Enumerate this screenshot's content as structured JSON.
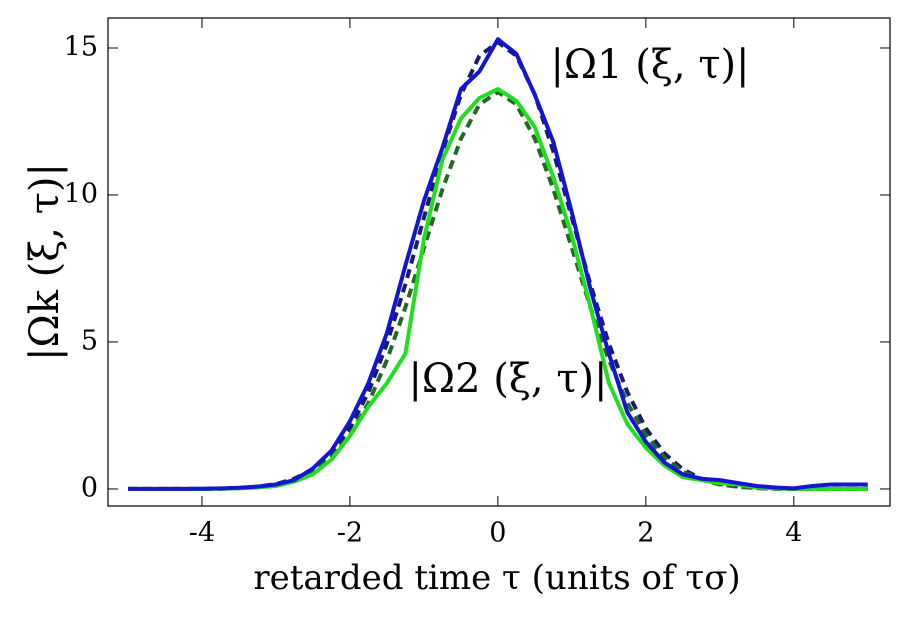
{
  "chart_data": {
    "type": "line",
    "xlabel": "retarded time τ (units of τσ)",
    "ylabel": "|Ωk (ξ, τ)|",
    "annotations": [
      "|Ω1 (ξ, τ)|",
      "|Ω2 (ξ, τ)|"
    ],
    "x": [
      -5,
      -4.75,
      -4.5,
      -4.25,
      -4,
      -3.75,
      -3.5,
      -3.25,
      -3,
      -2.75,
      -2.5,
      -2.25,
      -2,
      -1.75,
      -1.5,
      -1.25,
      -1,
      -0.75,
      -0.5,
      -0.25,
      0,
      0.25,
      0.5,
      0.75,
      1,
      1.25,
      1.5,
      1.75,
      2,
      2.25,
      2.5,
      2.75,
      3,
      3.25,
      3.5,
      3.75,
      4,
      4.25,
      4.5,
      4.75,
      5
    ],
    "series": [
      {
        "color": "#1a1a6e",
        "dashed": true,
        "values": [
          0,
          0,
          0,
          0,
          0,
          0.01,
          0.03,
          0.08,
          0.17,
          0.35,
          0.67,
          1.21,
          2.06,
          3.29,
          4.94,
          6.96,
          9.22,
          11.47,
          13.41,
          14.73,
          15.2,
          14.73,
          13.41,
          11.47,
          9.22,
          6.96,
          4.94,
          3.29,
          2.06,
          1.21,
          0.67,
          0.35,
          0.17,
          0.08,
          0.03,
          0.01,
          0,
          0,
          0,
          0,
          0
        ]
      },
      {
        "color": "#1f6b1f",
        "dashed": true,
        "values": [
          0,
          0,
          0,
          0,
          0,
          0.01,
          0.03,
          0.07,
          0.15,
          0.31,
          0.59,
          1.07,
          1.83,
          2.92,
          4.38,
          6.18,
          8.19,
          10.19,
          11.91,
          13.08,
          13.5,
          13.08,
          11.91,
          10.19,
          8.19,
          6.18,
          4.38,
          2.92,
          1.83,
          1.07,
          0.59,
          0.31,
          0.15,
          0.07,
          0.03,
          0.01,
          0,
          0,
          0,
          0,
          0
        ]
      },
      {
        "color": "#22dd22",
        "dashed": false,
        "values": [
          0,
          0,
          0,
          0,
          0,
          0.01,
          0.02,
          0.05,
          0.1,
          0.25,
          0.5,
          1,
          1.8,
          2.8,
          3.6,
          4.6,
          8.5,
          11.2,
          12.6,
          13.3,
          13.6,
          13.2,
          12.3,
          10.6,
          8.6,
          6.2,
          3.6,
          2.2,
          1.4,
          0.8,
          0.4,
          0.3,
          0.2,
          0.15,
          0.05,
          0.02,
          0,
          0,
          0,
          0,
          0
        ]
      },
      {
        "color": "#1515d0",
        "dashed": false,
        "values": [
          0,
          0,
          0,
          0,
          0.01,
          0.02,
          0.04,
          0.08,
          0.15,
          0.3,
          0.7,
          1.3,
          2.3,
          3.6,
          5.3,
          7.6,
          9.8,
          11.6,
          13.6,
          14.2,
          15.3,
          14.8,
          13.4,
          11.8,
          9.4,
          6.8,
          4.6,
          2.6,
          1.6,
          0.9,
          0.5,
          0.35,
          0.3,
          0.2,
          0.1,
          0.05,
          0.02,
          0.1,
          0.15,
          0.15,
          0.15
        ]
      }
    ],
    "xlim": [
      -5.27,
      5.3
    ],
    "ylim": [
      -0.58,
      16.02
    ],
    "xticks": [
      -4,
      -2,
      0,
      2,
      4
    ],
    "yticks": [
      0,
      5,
      10,
      15
    ]
  }
}
